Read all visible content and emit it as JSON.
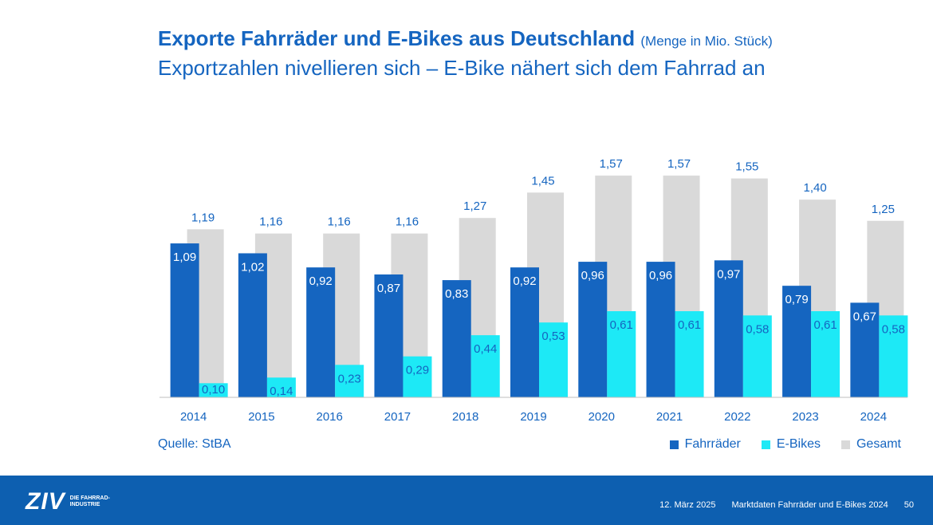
{
  "header": {
    "title": "Exporte Fahrräder und E-Bikes aus Deutschland",
    "title_unit": "(Menge in Mio. Stück)",
    "subtitle": "Exportzahlen nivellieren sich – E-Bike nähert sich dem Fahrrad an"
  },
  "source": "Quelle: StBA",
  "legend": [
    "Fahrräder",
    "E-Bikes",
    "Gesamt"
  ],
  "colors": {
    "fahrraeder": "#1565c0",
    "ebikes": "#1de9f6",
    "gesamt": "#d9d9d9",
    "text": "#1565c0",
    "footer": "#0d5fb0"
  },
  "chart_data": {
    "type": "bar",
    "categories": [
      "2014",
      "2015",
      "2016",
      "2017",
      "2018",
      "2019",
      "2020",
      "2021",
      "2022",
      "2023",
      "2024"
    ],
    "series": [
      {
        "name": "Fahrräder",
        "values": [
          1.09,
          1.02,
          0.92,
          0.87,
          0.83,
          0.92,
          0.96,
          0.96,
          0.97,
          0.79,
          0.67
        ],
        "labels": [
          "1,09",
          "1,02",
          "0,92",
          "0,87",
          "0,83",
          "0,92",
          "0,96",
          "0,96",
          "0,97",
          "0,79",
          "0,67"
        ]
      },
      {
        "name": "E-Bikes",
        "values": [
          0.1,
          0.14,
          0.23,
          0.29,
          0.44,
          0.53,
          0.61,
          0.61,
          0.58,
          0.61,
          0.58
        ],
        "labels": [
          "0,10",
          "0,14",
          "0,23",
          "0,29",
          "0,44",
          "0,53",
          "0,61",
          "0,61",
          "0,58",
          "0,61",
          "0,58"
        ]
      },
      {
        "name": "Gesamt",
        "values": [
          1.19,
          1.16,
          1.16,
          1.16,
          1.27,
          1.45,
          1.57,
          1.57,
          1.55,
          1.4,
          1.25
        ],
        "labels": [
          "1,19",
          "1,16",
          "1,16",
          "1,16",
          "1,27",
          "1,45",
          "1,57",
          "1,57",
          "1,55",
          "1,40",
          "1,25"
        ]
      }
    ],
    "ylim": [
      0,
      1.6
    ],
    "legend_position": "bottom-right",
    "grid": false
  },
  "footer": {
    "logo": "ZIV",
    "logo_sub": "DIE FAHRRAD- INDUSTRIE",
    "date": "12. März 2025",
    "doc_title": "Marktdaten Fahrräder und E-Bikes 2024",
    "page": "50"
  }
}
